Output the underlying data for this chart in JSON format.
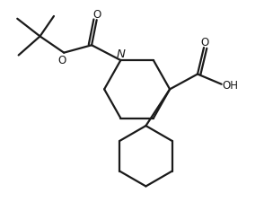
{
  "bg_color": "#ffffff",
  "line_color": "#1a1a1a",
  "line_width": 1.6,
  "font_size": 8.5,
  "figsize": [
    2.94,
    2.26
  ],
  "dpi": 100,
  "xlim": [
    0,
    10
  ],
  "ylim": [
    0,
    8
  ],
  "N_label": "N",
  "O_label": "O",
  "OH_label": "OH"
}
